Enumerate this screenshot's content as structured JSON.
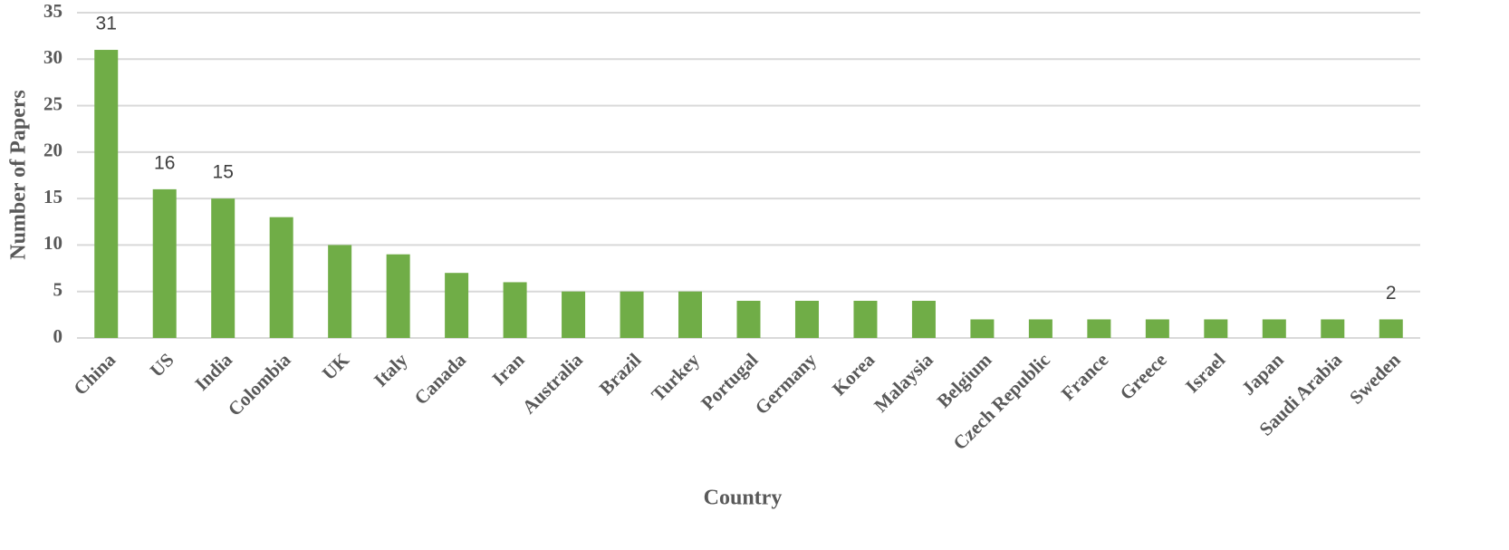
{
  "chart_data": {
    "type": "bar",
    "x_label": "Country",
    "y_label": "Number of Papers",
    "categories": [
      "China",
      "US",
      "India",
      "Colombia",
      "UK",
      "Italy",
      "Canada",
      "Iran",
      "Australia",
      "Brazil",
      "Turkey",
      "Portugal",
      "Germany",
      "Korea",
      "Malaysia",
      "Belgium",
      "Czech Republic",
      "France",
      "Greece",
      "Israel",
      "Japan",
      "Saudi Arabia",
      "Sweden"
    ],
    "values": [
      31,
      16,
      15,
      13,
      10,
      9,
      7,
      6,
      5,
      5,
      5,
      4,
      4,
      4,
      4,
      2,
      2,
      2,
      2,
      2,
      2,
      2,
      2
    ],
    "value_labels": [
      "31",
      "16",
      "15",
      null,
      null,
      null,
      null,
      null,
      null,
      null,
      null,
      null,
      null,
      null,
      null,
      null,
      null,
      null,
      null,
      null,
      null,
      null,
      "2"
    ],
    "color": "#70ad47",
    "ylim": [
      0,
      35
    ],
    "yticks": [
      0,
      5,
      10,
      15,
      20,
      25,
      30,
      35
    ],
    "grid": true
  }
}
